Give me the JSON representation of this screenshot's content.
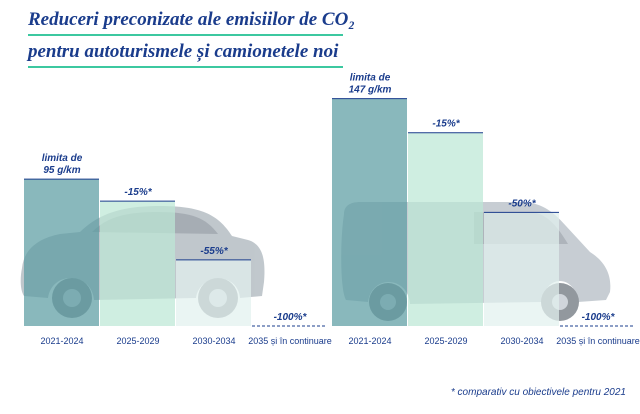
{
  "title": {
    "line1": "Reduceri preconizate ale emisiilor de CO₂",
    "line2": "pentru autoturismele și camionetele noi"
  },
  "footnote": "* comparativ cu obiectivele pentru 2021",
  "colors": {
    "title": "#1a3c8c",
    "accent": "#3cc8a0",
    "bar_base": "#5c9ca2",
    "bar_2025": "#bde8d6",
    "bar_2030": "#e2f1ee",
    "bar_2035": "#f2f8f8",
    "label": "#1a3c8c"
  },
  "chart_data": [
    {
      "type": "bar",
      "name": "",
      "illustration": "car-icon",
      "categories": [
        "2021-2024",
        "2025-2029",
        "2030-2034",
        "2035 și în continuare"
      ],
      "values": [
        95,
        80.75,
        42.75,
        0
      ],
      "labels": [
        "limita de\n95 g/km",
        "-15%*",
        "-55%*",
        "-100%*"
      ],
      "ylim": [
        0,
        150
      ]
    },
    {
      "type": "bar",
      "name": "",
      "illustration": "van-icon",
      "categories": [
        "2021-2024",
        "2025-2029",
        "2030-2034",
        "2035 și în continuare"
      ],
      "values": [
        147,
        124.95,
        73.5,
        0
      ],
      "labels": [
        "limita de\n147 g/km",
        "-15%*",
        "-50%*",
        "-100%*"
      ],
      "ylim": [
        0,
        150
      ]
    }
  ]
}
